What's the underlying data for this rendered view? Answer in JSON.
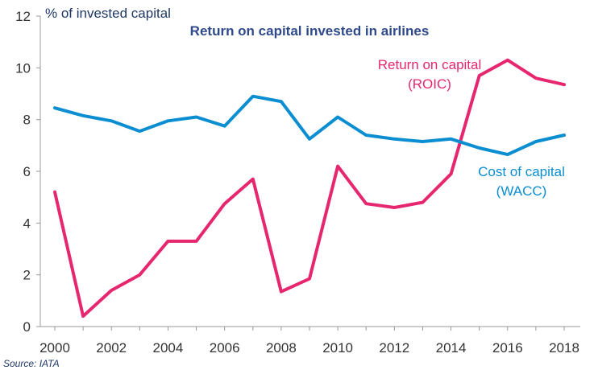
{
  "chart_data": {
    "type": "line",
    "title": "Return on capital invested in airlines",
    "ylabel": "% of invested capital",
    "xlabel": "",
    "ylim": [
      0,
      12
    ],
    "yticks": [
      "0",
      "2",
      "4",
      "6",
      "8",
      "10",
      "12"
    ],
    "xticks": [
      "2000",
      "2002",
      "2004",
      "2006",
      "2008",
      "2010",
      "2012",
      "2014",
      "2016",
      "2018"
    ],
    "x": [
      2000,
      2001,
      2002,
      2003,
      2004,
      2005,
      2006,
      2007,
      2008,
      2009,
      2010,
      2011,
      2012,
      2013,
      2014,
      2015,
      2016,
      2017,
      2018
    ],
    "series": [
      {
        "name": "Return on capital (ROIC)",
        "label_lines": [
          "Return on capital",
          "(ROIC)"
        ],
        "color": "#e6276f",
        "values": [
          5.2,
          0.4,
          1.4,
          2.0,
          3.3,
          3.3,
          4.75,
          5.7,
          1.35,
          1.85,
          6.2,
          4.75,
          4.6,
          4.8,
          5.9,
          9.7,
          10.3,
          9.6,
          9.35
        ]
      },
      {
        "name": "Cost of capital (WACC)",
        "label_lines": [
          "Cost of capital",
          "(WACC)"
        ],
        "color": "#0b8ed1",
        "values": [
          8.45,
          8.15,
          7.95,
          7.55,
          7.95,
          8.1,
          7.75,
          8.9,
          8.7,
          7.25,
          8.1,
          7.4,
          7.25,
          7.15,
          7.25,
          6.9,
          6.65,
          7.15,
          7.4
        ]
      }
    ],
    "source": "Source: IATA"
  }
}
